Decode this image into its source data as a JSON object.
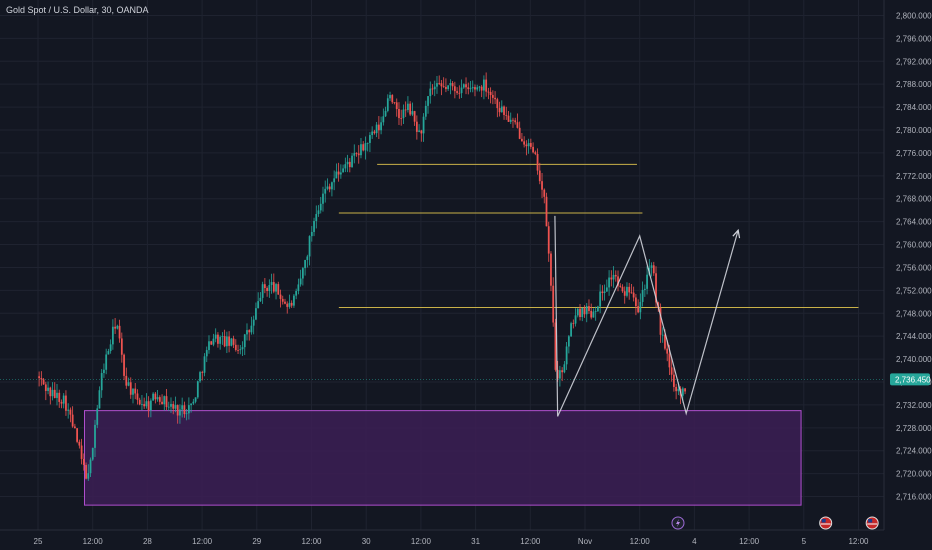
{
  "header": {
    "title": "Gold Spot / U.S. Dollar, 30, OANDA"
  },
  "colors": {
    "background": "#131722",
    "grid": "#1f2330",
    "up": "#26a69a",
    "down": "#ef5350",
    "level": "#c9b148",
    "zone_fill": "#3c1f55",
    "zone_border": "#b04fcf",
    "drawing": "#d1d4dc",
    "axis_text": "#b2b5be",
    "badge": "#26a69a"
  },
  "chart_data": {
    "type": "candlestick",
    "title": "Gold Spot / U.S. Dollar, 30, OANDA",
    "ylim": [
      2714,
      2802
    ],
    "y_ticks": [
      2716,
      2720,
      2724,
      2728,
      2732,
      2736,
      2740,
      2744,
      2748,
      2752,
      2756,
      2760,
      2764,
      2768,
      2772,
      2776,
      2780,
      2784,
      2788,
      2792,
      2796,
      2800
    ],
    "y_tick_labels": [
      "2,716.000",
      "2,720.000",
      "2,724.000",
      "2,728.000",
      "2,732.000",
      "2,736.000",
      "2,740.000",
      "2,744.000",
      "2,748.000",
      "2,752.000",
      "2,756.000",
      "2,760.000",
      "2,764.000",
      "2,768.000",
      "2,772.000",
      "2,776.000",
      "2,780.000",
      "2,784.000",
      "2,788.000",
      "2,792.000",
      "2,796.000",
      "2,800.000"
    ],
    "x_ticks": [
      {
        "t": 0,
        "label": "25"
      },
      {
        "t": 1,
        "label": "12:00"
      },
      {
        "t": 2,
        "label": "28"
      },
      {
        "t": 3,
        "label": "12:00"
      },
      {
        "t": 4,
        "label": "29"
      },
      {
        "t": 5,
        "label": "12:00"
      },
      {
        "t": 6,
        "label": "30"
      },
      {
        "t": 7,
        "label": "12:00"
      },
      {
        "t": 8,
        "label": "31"
      },
      {
        "t": 9,
        "label": "12:00"
      },
      {
        "t": 10,
        "label": "Nov"
      },
      {
        "t": 11,
        "label": "12:00"
      },
      {
        "t": 12,
        "label": "4"
      },
      {
        "t": 13,
        "label": "12:00"
      },
      {
        "t": 14,
        "label": "5"
      },
      {
        "t": 15,
        "label": "12:00"
      }
    ],
    "anchors": [
      {
        "t": 0.0,
        "p": 2737.0
      },
      {
        "t": 0.25,
        "p": 2734.0
      },
      {
        "t": 0.5,
        "p": 2733.0
      },
      {
        "t": 0.7,
        "p": 2727.0
      },
      {
        "t": 0.85,
        "p": 2721.0
      },
      {
        "t": 0.95,
        "p": 2719.0
      },
      {
        "t": 1.05,
        "p": 2728.0
      },
      {
        "t": 1.2,
        "p": 2738.0
      },
      {
        "t": 1.35,
        "p": 2743.0
      },
      {
        "t": 1.45,
        "p": 2747.0
      },
      {
        "t": 1.6,
        "p": 2737.0
      },
      {
        "t": 1.8,
        "p": 2733.0
      },
      {
        "t": 2.05,
        "p": 2732.0
      },
      {
        "t": 2.2,
        "p": 2734.0
      },
      {
        "t": 2.4,
        "p": 2732.0
      },
      {
        "t": 2.6,
        "p": 2731.0
      },
      {
        "t": 2.85,
        "p": 2732.0
      },
      {
        "t": 3.0,
        "p": 2738.0
      },
      {
        "t": 3.2,
        "p": 2744.0
      },
      {
        "t": 3.45,
        "p": 2743.0
      },
      {
        "t": 3.7,
        "p": 2742.0
      },
      {
        "t": 3.95,
        "p": 2746.0
      },
      {
        "t": 4.1,
        "p": 2752.0
      },
      {
        "t": 4.3,
        "p": 2753.0
      },
      {
        "t": 4.6,
        "p": 2749.0
      },
      {
        "t": 4.75,
        "p": 2751.0
      },
      {
        "t": 4.95,
        "p": 2759.0
      },
      {
        "t": 5.1,
        "p": 2766.0
      },
      {
        "t": 5.3,
        "p": 2770.0
      },
      {
        "t": 5.55,
        "p": 2773.0
      },
      {
        "t": 5.8,
        "p": 2775.0
      },
      {
        "t": 6.05,
        "p": 2778.0
      },
      {
        "t": 6.3,
        "p": 2781.0
      },
      {
        "t": 6.45,
        "p": 2787.0
      },
      {
        "t": 6.6,
        "p": 2782.0
      },
      {
        "t": 6.8,
        "p": 2784.0
      },
      {
        "t": 7.0,
        "p": 2779.0
      },
      {
        "t": 7.2,
        "p": 2787.0
      },
      {
        "t": 7.5,
        "p": 2787.5
      },
      {
        "t": 7.9,
        "p": 2787.0
      },
      {
        "t": 8.2,
        "p": 2788.0
      },
      {
        "t": 8.45,
        "p": 2784.0
      },
      {
        "t": 8.7,
        "p": 2781.0
      },
      {
        "t": 8.95,
        "p": 2778.0
      },
      {
        "t": 9.15,
        "p": 2774.0
      },
      {
        "t": 9.3,
        "p": 2766.0
      },
      {
        "t": 9.45,
        "p": 2745.0
      },
      {
        "t": 9.5,
        "p": 2735.0
      },
      {
        "t": 9.65,
        "p": 2740.0
      },
      {
        "t": 9.8,
        "p": 2747.0
      },
      {
        "t": 10.0,
        "p": 2749.0
      },
      {
        "t": 10.15,
        "p": 2748.0
      },
      {
        "t": 10.4,
        "p": 2753.0
      },
      {
        "t": 10.55,
        "p": 2755.0
      },
      {
        "t": 10.7,
        "p": 2751.0
      },
      {
        "t": 10.85,
        "p": 2753.0
      },
      {
        "t": 11.0,
        "p": 2749.0
      },
      {
        "t": 11.1,
        "p": 2753.0
      },
      {
        "t": 11.25,
        "p": 2756.0
      },
      {
        "t": 11.4,
        "p": 2745.0
      },
      {
        "t": 11.6,
        "p": 2737.0
      },
      {
        "t": 11.75,
        "p": 2734.0
      },
      {
        "t": 11.85,
        "p": 2735.0
      }
    ],
    "last_price": 2736.45,
    "last_price_label": "2,736.450",
    "horizontal_levels": [
      {
        "price": 2774.0,
        "t_start": 6.2,
        "t_end": 10.95
      },
      {
        "price": 2765.5,
        "t_start": 5.5,
        "t_end": 11.05
      },
      {
        "price": 2749.0,
        "t_start": 5.5,
        "t_end": 15.0
      }
    ],
    "demand_zone": {
      "price_top": 2731.0,
      "price_bottom": 2714.5,
      "t_start": 0.85,
      "t_end": 13.95
    },
    "drawn_path": [
      {
        "t": 9.45,
        "p": 2765.0
      },
      {
        "t": 9.5,
        "p": 2730.0
      },
      {
        "t": 11.0,
        "p": 2761.5
      },
      {
        "t": 11.85,
        "p": 2730.5
      },
      {
        "t": 12.8,
        "p": 2762.5
      }
    ],
    "event_markers": [
      {
        "t": 11.7,
        "icon": "lightning-icon"
      },
      {
        "t": 14.4,
        "icon": "us-flag-icon"
      },
      {
        "t": 15.25,
        "icon": "us-flag-icon"
      }
    ]
  }
}
